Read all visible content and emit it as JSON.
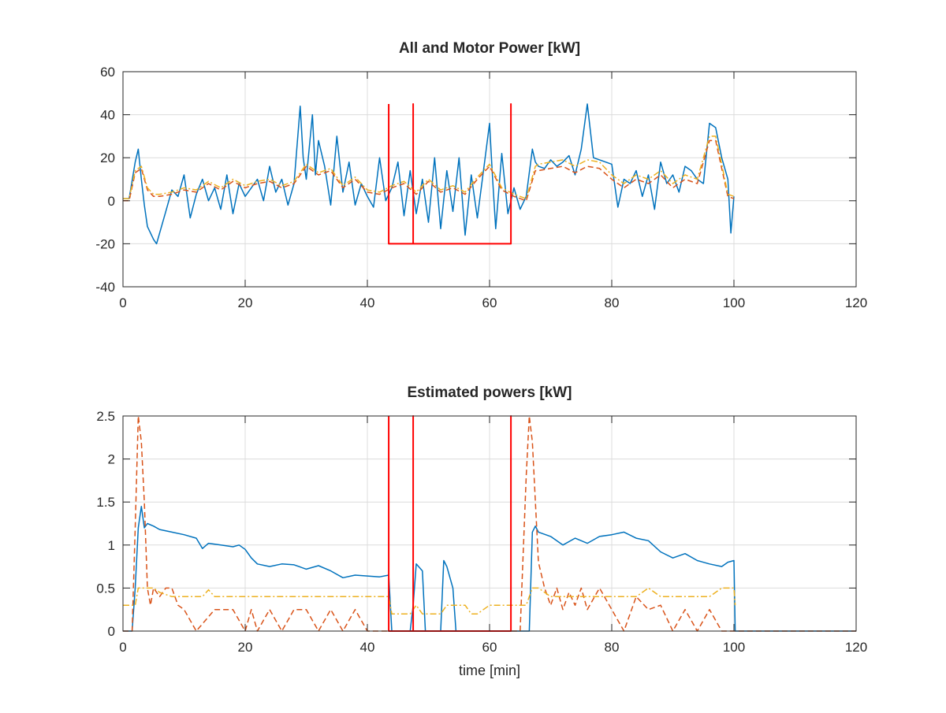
{
  "chart_data": [
    {
      "type": "line",
      "title": "All and Motor Power [kW]",
      "xlabel": "",
      "ylabel": "",
      "xlim": [
        0,
        120
      ],
      "ylim": [
        -40,
        60
      ],
      "xticks": [
        0,
        20,
        40,
        60,
        80,
        100,
        120
      ],
      "yticks": [
        -40,
        -20,
        0,
        20,
        40,
        60
      ],
      "xtick_labels": [
        "0",
        "20",
        "40",
        "60",
        "80",
        "100",
        "120"
      ],
      "ytick_labels": [
        "-40",
        "-20",
        "0",
        "20",
        "40",
        "60"
      ],
      "grid": true,
      "series": [
        {
          "color": "#0072BD",
          "dash": "solid",
          "x": [
            0,
            1,
            2,
            2.5,
            3,
            3.5,
            4,
            5,
            5.5,
            6,
            7,
            8,
            9,
            10,
            11,
            12,
            13,
            14,
            15,
            16,
            17,
            18,
            19,
            20,
            21,
            22,
            23,
            24,
            25,
            26,
            27,
            28,
            29,
            29.5,
            30,
            31,
            31.5,
            32,
            33,
            34,
            35,
            36,
            37,
            38,
            39,
            40,
            41,
            42,
            43,
            44,
            45,
            46,
            47,
            48,
            49,
            50,
            51,
            52,
            53,
            54,
            55,
            56,
            57,
            58,
            59,
            60,
            60.5,
            61,
            62,
            63,
            64,
            65,
            66,
            67,
            67.5,
            68,
            69,
            70,
            71,
            72,
            73,
            74,
            75,
            76,
            77,
            78,
            79,
            80,
            81,
            82,
            83,
            84,
            85,
            86,
            87,
            88,
            89,
            90,
            91,
            92,
            93,
            94,
            95,
            96,
            97,
            98,
            99,
            99.5,
            100
          ],
          "y": [
            1,
            1,
            18,
            24,
            10,
            -2,
            -12,
            -18,
            -20,
            -15,
            -5,
            5,
            2,
            12,
            -8,
            3,
            10,
            0,
            6,
            -4,
            12,
            -6,
            8,
            2,
            6,
            10,
            0,
            16,
            4,
            10,
            -2,
            8,
            44,
            20,
            10,
            40,
            12,
            28,
            16,
            -2,
            30,
            4,
            18,
            -2,
            8,
            2,
            -3,
            20,
            0,
            6,
            18,
            -7,
            14,
            -6,
            10,
            -10,
            20,
            -13,
            14,
            -5,
            20,
            -16,
            12,
            -8,
            14,
            36,
            10,
            -13,
            22,
            -6,
            6,
            -4,
            2,
            24,
            18,
            16,
            15,
            19,
            16,
            18,
            21,
            12,
            24,
            45,
            20,
            19,
            18,
            17,
            -3,
            10,
            8,
            14,
            2,
            12,
            -4,
            18,
            8,
            12,
            4,
            16,
            14,
            10,
            8,
            36,
            34,
            20,
            10,
            -15,
            2
          ]
        },
        {
          "color": "#D95319",
          "dash": "dashed",
          "x": [
            0,
            1,
            2,
            3,
            4,
            5,
            6,
            8,
            10,
            12,
            14,
            16,
            18,
            20,
            22,
            24,
            26,
            28,
            30,
            32,
            34,
            36,
            38,
            40,
            42,
            44,
            46,
            48,
            50,
            52,
            54,
            56,
            58,
            60,
            62,
            64,
            66,
            67.5,
            68,
            70,
            72,
            74,
            76,
            78,
            80,
            82,
            84,
            86,
            88,
            90,
            92,
            94,
            96,
            97,
            98,
            99,
            100
          ],
          "y": [
            0,
            0,
            13,
            15,
            5,
            2,
            2,
            3,
            5,
            4,
            8,
            5,
            9,
            6,
            8,
            9,
            6,
            8,
            16,
            12,
            14,
            6,
            10,
            4,
            3,
            6,
            8,
            3,
            9,
            4,
            6,
            3,
            10,
            16,
            5,
            2,
            0,
            14,
            14,
            15,
            16,
            13,
            16,
            15,
            10,
            6,
            10,
            8,
            12,
            6,
            10,
            8,
            28,
            28,
            15,
            2,
            1
          ]
        },
        {
          "color": "#EDB120",
          "dash": "dashdot",
          "x": [
            0,
            1,
            2,
            3,
            4,
            5,
            6,
            8,
            10,
            12,
            14,
            16,
            18,
            20,
            22,
            24,
            26,
            28,
            30,
            32,
            34,
            36,
            38,
            40,
            42,
            44,
            46,
            48,
            50,
            52,
            54,
            56,
            58,
            60,
            62,
            64,
            66,
            67.5,
            68,
            70,
            72,
            74,
            76,
            78,
            80,
            82,
            84,
            86,
            88,
            90,
            92,
            94,
            96,
            97,
            98,
            99,
            100
          ],
          "y": [
            1,
            1,
            14,
            16,
            6,
            3,
            3,
            4,
            6,
            5,
            9,
            6,
            10,
            7,
            9,
            10,
            7,
            9,
            17,
            13,
            15,
            7,
            11,
            5,
            4,
            7,
            9,
            4,
            10,
            5,
            7,
            4,
            11,
            17,
            6,
            3,
            1,
            16,
            17,
            18,
            19,
            16,
            19,
            18,
            12,
            8,
            12,
            10,
            14,
            8,
            12,
            10,
            30,
            30,
            17,
            3,
            2
          ]
        },
        {
          "color": "#FF0000",
          "dash": "solid",
          "x": [
            43.5,
            43.5,
            43.5,
            47.5,
            47.5,
            47.5,
            63.5,
            63.5,
            63.5
          ],
          "y": [
            45,
            -20,
            -20,
            -20,
            45,
            -20,
            -20,
            45,
            -20
          ]
        }
      ]
    },
    {
      "type": "line",
      "title": "Estimated powers [kW]",
      "xlabel": "time [min]",
      "ylabel": "",
      "xlim": [
        0,
        120
      ],
      "ylim": [
        0,
        2.5
      ],
      "xticks": [
        0,
        20,
        40,
        60,
        80,
        100,
        120
      ],
      "yticks": [
        0,
        0.5,
        1,
        1.5,
        2,
        2.5
      ],
      "xtick_labels": [
        "0",
        "20",
        "40",
        "60",
        "80",
        "100",
        "120"
      ],
      "ytick_labels": [
        "0",
        "0.5",
        "1",
        "1.5",
        "2",
        "2.5"
      ],
      "grid": true,
      "series": [
        {
          "color": "#0072BD",
          "dash": "solid",
          "x": [
            0,
            1.5,
            2,
            2.5,
            3,
            3.5,
            4,
            5,
            6,
            8,
            10,
            12,
            13,
            14,
            16,
            18,
            19,
            20,
            21,
            22,
            24,
            26,
            28,
            30,
            32,
            34,
            36,
            38,
            40,
            42,
            43.5,
            44,
            46,
            47,
            47.5,
            48,
            49,
            49.5,
            52,
            52.5,
            53,
            54,
            54.5,
            55,
            63.5,
            66.5,
            67,
            67.5,
            68,
            70,
            72,
            74,
            76,
            78,
            80,
            82,
            84,
            86,
            88,
            90,
            92,
            94,
            96,
            98,
            99,
            100,
            100.2,
            120
          ],
          "y": [
            0,
            0,
            0.5,
            1.2,
            1.45,
            1.2,
            1.25,
            1.22,
            1.18,
            1.15,
            1.12,
            1.08,
            0.96,
            1.02,
            1.0,
            0.98,
            1.0,
            0.95,
            0.85,
            0.78,
            0.75,
            0.78,
            0.77,
            0.72,
            0.76,
            0.7,
            0.62,
            0.65,
            0.64,
            0.63,
            0.65,
            0,
            0,
            0,
            0.3,
            0.78,
            0.7,
            0,
            0,
            0.82,
            0.75,
            0.5,
            0,
            0,
            0,
            0,
            1.15,
            1.22,
            1.15,
            1.1,
            1.0,
            1.08,
            1.02,
            1.1,
            1.12,
            1.15,
            1.08,
            1.05,
            0.92,
            0.85,
            0.9,
            0.82,
            0.78,
            0.75,
            0.8,
            0.82,
            0,
            0
          ]
        },
        {
          "color": "#D95319",
          "dash": "dashed",
          "x": [
            0,
            1.5,
            2,
            2.5,
            3,
            3.5,
            4,
            4.5,
            5,
            6,
            7,
            8,
            9,
            10,
            12,
            15,
            18,
            20,
            21,
            22,
            24,
            26,
            28,
            30,
            32,
            34,
            36,
            38,
            40,
            43.5,
            44,
            63.5,
            65,
            66,
            66.5,
            67,
            68,
            69,
            70,
            71,
            72,
            73,
            74,
            75,
            76,
            78,
            80,
            82,
            84,
            86,
            88,
            90,
            92,
            94,
            96,
            98,
            100,
            120
          ],
          "y": [
            0,
            0,
            1.2,
            2.5,
            2.2,
            1.5,
            0.5,
            0.3,
            0.5,
            0.4,
            0.5,
            0.5,
            0.3,
            0.25,
            0,
            0.25,
            0.25,
            0,
            0.25,
            0,
            0.25,
            0,
            0.25,
            0.25,
            0,
            0.25,
            0,
            0.25,
            0,
            0,
            0,
            0,
            0,
            1.8,
            2.5,
            2.2,
            0.8,
            0.5,
            0.3,
            0.5,
            0.25,
            0.45,
            0.3,
            0.5,
            0.25,
            0.5,
            0.25,
            0,
            0.4,
            0.25,
            0.3,
            0,
            0.25,
            0,
            0.25,
            0,
            0,
            0
          ]
        },
        {
          "color": "#EDB120",
          "dash": "dashdot",
          "x": [
            0,
            1.5,
            2,
            2.5,
            3,
            4,
            5,
            6,
            8,
            10,
            12,
            13,
            14,
            15,
            16,
            20,
            25,
            30,
            35,
            40,
            43.5,
            44,
            47,
            48,
            49,
            50,
            52,
            53,
            54,
            55,
            56,
            57,
            58,
            60,
            62,
            63.5,
            64,
            66,
            66.5,
            67,
            68,
            70,
            72,
            74,
            76,
            78,
            80,
            82,
            84,
            86,
            88,
            90,
            92,
            94,
            96,
            98,
            100,
            100.2
          ],
          "y": [
            0.3,
            0.3,
            0.3,
            0.5,
            0.5,
            0.5,
            0.5,
            0.45,
            0.4,
            0.4,
            0.4,
            0.4,
            0.48,
            0.4,
            0.4,
            0.4,
            0.4,
            0.4,
            0.4,
            0.4,
            0.4,
            0.2,
            0.2,
            0.3,
            0.2,
            0.2,
            0.2,
            0.3,
            0.3,
            0.3,
            0.3,
            0.2,
            0.2,
            0.3,
            0.3,
            0.3,
            0.3,
            0.3,
            0.4,
            0.5,
            0.5,
            0.4,
            0.4,
            0.4,
            0.4,
            0.4,
            0.4,
            0.4,
            0.4,
            0.5,
            0.4,
            0.4,
            0.4,
            0.4,
            0.4,
            0.5,
            0.5,
            0.3
          ]
        },
        {
          "color": "#FF0000",
          "dash": "solid",
          "x": [
            43.5,
            43.5,
            43.5,
            47.5,
            47.5,
            47.5,
            63.5,
            63.5,
            63.5
          ],
          "y": [
            2.5,
            0,
            0,
            0,
            2.5,
            0,
            0,
            2.5,
            0
          ]
        }
      ]
    }
  ]
}
